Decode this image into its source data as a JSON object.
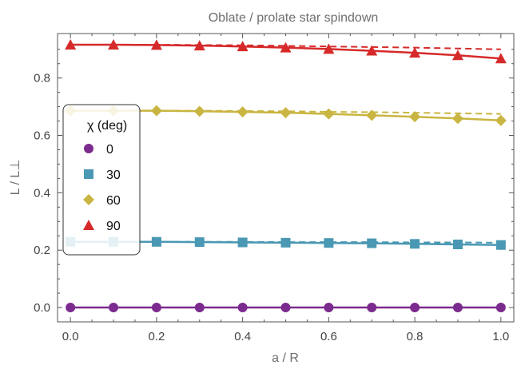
{
  "chart_data": {
    "type": "line",
    "title": "Oblate / prolate star spindown",
    "xlabel": "a / R",
    "ylabel": "L / L⊥",
    "xlim": [
      -0.03,
      1.03
    ],
    "ylim": [
      -0.05,
      0.955
    ],
    "xticks": [
      "0.0",
      "0.2",
      "0.4",
      "0.6",
      "0.8",
      "1.0"
    ],
    "yticks": [
      "0.0",
      "0.2",
      "0.4",
      "0.6",
      "0.8"
    ],
    "grid": false,
    "legend": {
      "title": "χ (deg)",
      "placement": "left",
      "entries": [
        "0",
        "30",
        "60",
        "90"
      ]
    },
    "x": [
      0.0,
      0.1,
      0.2,
      0.3,
      0.4,
      0.5,
      0.6,
      0.7,
      0.8,
      0.9,
      1.0
    ],
    "series": [
      {
        "name": "0",
        "marker": "circle",
        "color": "#7b2b8e",
        "solid": [
          0,
          0,
          0,
          0,
          0,
          0,
          0,
          0,
          0,
          0,
          0
        ],
        "dashed": [
          0,
          0,
          0,
          0,
          0,
          0,
          0,
          0,
          0,
          0,
          0
        ]
      },
      {
        "name": "30",
        "marker": "square",
        "color": "#4a98b3",
        "solid": [
          0.229,
          0.229,
          0.229,
          0.228,
          0.227,
          0.226,
          0.225,
          0.224,
          0.222,
          0.22,
          0.218
        ],
        "dashed": [
          0.229,
          0.229,
          0.229,
          0.229,
          0.229,
          0.228,
          0.228,
          0.228,
          0.227,
          0.227,
          0.226
        ]
      },
      {
        "name": "60",
        "marker": "diamond",
        "color": "#c9b541",
        "solid": [
          0.686,
          0.686,
          0.686,
          0.684,
          0.682,
          0.679,
          0.675,
          0.67,
          0.665,
          0.659,
          0.652
        ],
        "dashed": [
          0.686,
          0.686,
          0.686,
          0.686,
          0.685,
          0.684,
          0.682,
          0.681,
          0.679,
          0.677,
          0.675
        ]
      },
      {
        "name": "90",
        "marker": "triangle",
        "color": "#d62a2a",
        "solid": [
          0.916,
          0.916,
          0.915,
          0.913,
          0.91,
          0.906,
          0.901,
          0.895,
          0.888,
          0.879,
          0.868
        ],
        "dashed": [
          0.916,
          0.916,
          0.916,
          0.915,
          0.914,
          0.912,
          0.91,
          0.908,
          0.906,
          0.903,
          0.9
        ]
      }
    ]
  }
}
